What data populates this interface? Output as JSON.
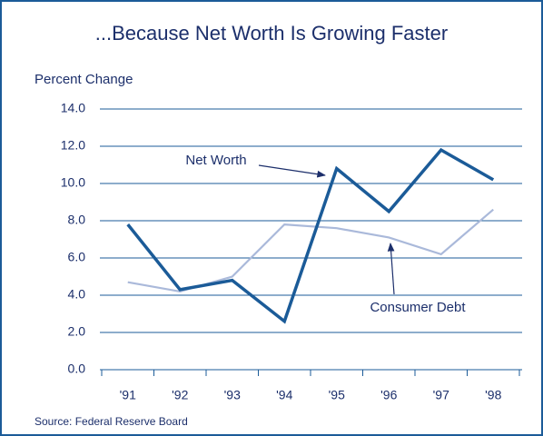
{
  "chart_data": {
    "type": "line",
    "title": "...Because Net Worth Is Growing Faster",
    "y_label": "Percent Change",
    "source": "Source: Federal Reserve Board",
    "categories": [
      "'91",
      "'92",
      "'93",
      "'94",
      "'95",
      "'96",
      "'97",
      "'98"
    ],
    "series": [
      {
        "name": "Net Worth",
        "color": "#1b5b98",
        "values": [
          7.8,
          4.3,
          4.8,
          2.6,
          10.8,
          8.5,
          11.8,
          10.2
        ]
      },
      {
        "name": "Consumer Debt",
        "color": "#aab9da",
        "values": [
          4.7,
          4.2,
          5.0,
          7.8,
          7.6,
          7.1,
          6.2,
          8.6
        ]
      }
    ],
    "ylim": [
      0,
      14
    ],
    "yticks": [
      {
        "value": 0,
        "label": "0.0"
      },
      {
        "value": 2,
        "label": "2.0"
      },
      {
        "value": 4,
        "label": "4.0"
      },
      {
        "value": 6,
        "label": "6.0"
      },
      {
        "value": 8,
        "label": "8.0"
      },
      {
        "value": 10,
        "label": "10.0"
      },
      {
        "value": 12,
        "label": "12.0"
      },
      {
        "value": 14,
        "label": "14.0"
      }
    ],
    "grid": true
  }
}
